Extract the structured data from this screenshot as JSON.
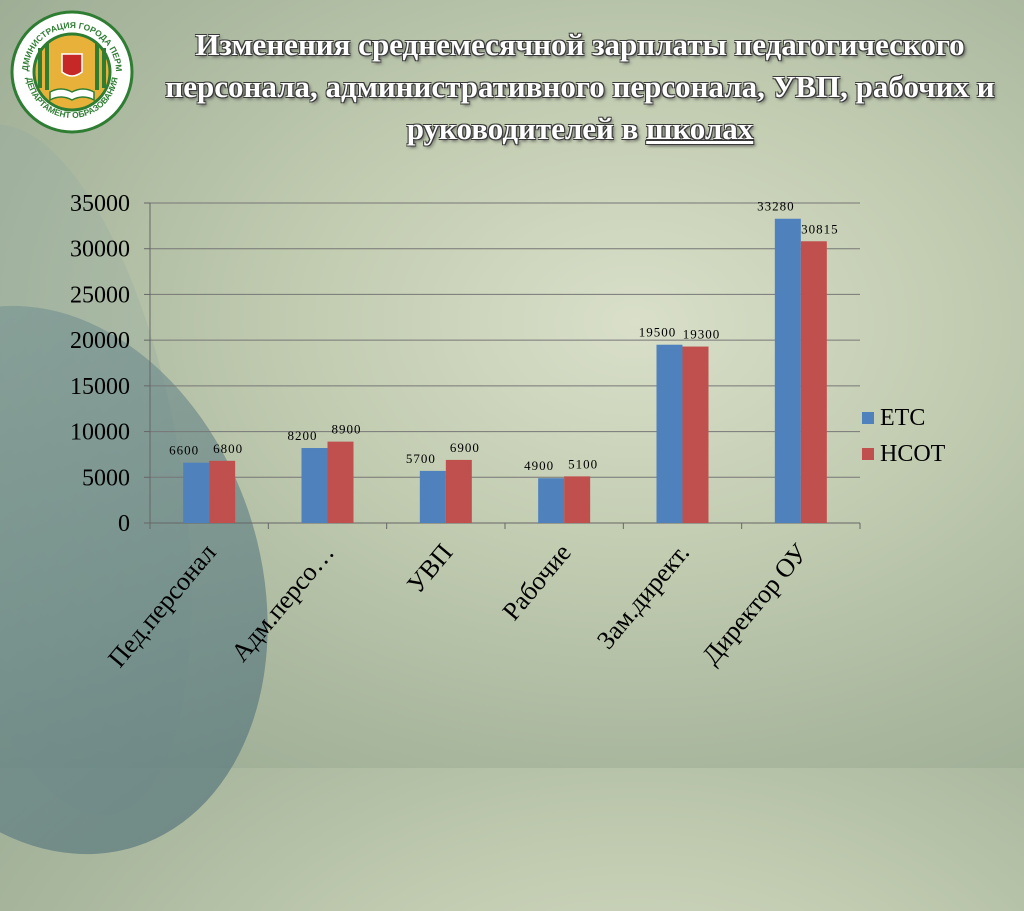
{
  "title_main": "Изменения среднемесячной зарплаты педагогического персонала, административного персонала, УВП, рабочих и руководителей в ",
  "title_underlined": "школах",
  "logo": {
    "icon": "seal-logo-icon",
    "ring_text": "АДМИНИСТРАЦИЯ ГОРОДА ПЕРМИ · ДЕПАРТАМЕНТ ОБРАЗОВАНИЯ"
  },
  "colors": {
    "etc": "#4f81bd",
    "ncot": "#c0504d"
  },
  "chart_data": {
    "type": "bar",
    "categories": [
      "Пед.персонал",
      "Адм.персо…",
      "УВП",
      "Рабочие",
      "Зам.директ.",
      "Директор ОУ"
    ],
    "series": [
      {
        "name": "ЕТС",
        "values": [
          6600,
          8200,
          5700,
          4900,
          19500,
          33280
        ]
      },
      {
        "name": "НСОТ",
        "values": [
          6800,
          8900,
          6900,
          5100,
          19300,
          30815
        ]
      }
    ],
    "ylim": [
      0,
      35000
    ],
    "yticks": [
      0,
      5000,
      10000,
      15000,
      20000,
      25000,
      30000,
      35000
    ],
    "grid": true,
    "legend": "right"
  }
}
